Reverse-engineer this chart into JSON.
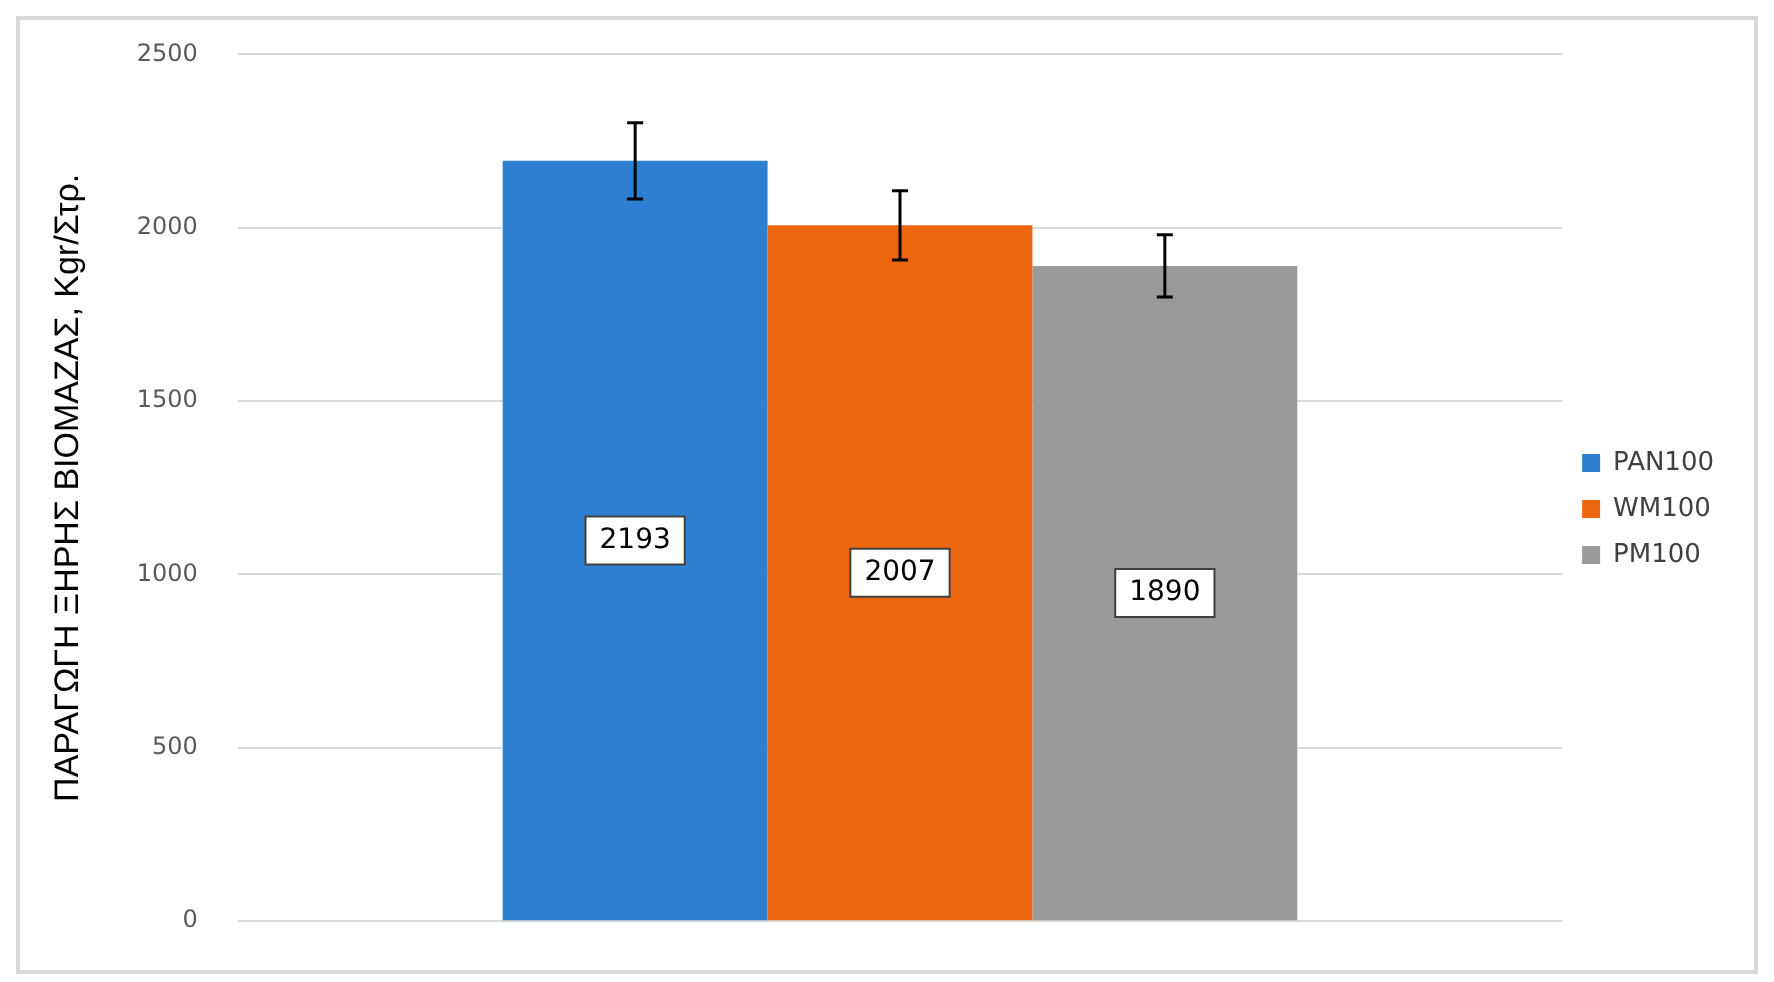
{
  "chart_data": {
    "type": "bar",
    "ylabel": "ΠΑΡΑΓΩΓΗ ΞΗΡΗΣ ΒΙΟΜΑΖΑΣ, Kgr/Στρ.",
    "categories": [
      null
    ],
    "series": [
      {
        "name": "PAN100",
        "color": "#2e7fd1",
        "values": [
          2193
        ],
        "errors": [
          110
        ]
      },
      {
        "name": "WM100",
        "color": "#ee6610",
        "values": [
          2007
        ],
        "errors": [
          100
        ]
      },
      {
        "name": "PM100",
        "color": "#999999",
        "values": [
          1890
        ],
        "errors": [
          90
        ]
      }
    ],
    "ylim": [
      0,
      2500
    ],
    "yticks": [
      0,
      500,
      1000,
      1500,
      2000,
      2500
    ],
    "grid": "y",
    "legend": "right",
    "data_labels": true
  }
}
